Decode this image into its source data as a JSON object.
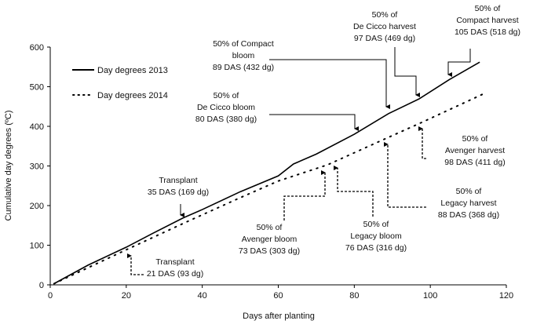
{
  "chart_data": {
    "type": "line",
    "xlabel": "Days after planting",
    "ylabel": "Cumulative day degrees (ºC)",
    "xlim": [
      0,
      120
    ],
    "ylim": [
      0,
      600
    ],
    "xticks": [
      0,
      20,
      40,
      60,
      80,
      100,
      120
    ],
    "yticks": [
      0,
      100,
      200,
      300,
      400,
      500,
      600
    ],
    "grid": false,
    "legend_position": "top-left",
    "series": [
      {
        "name": "Day degrees 2013",
        "style": "solid",
        "color": "#000000",
        "x": [
          1,
          10,
          20,
          27,
          35,
          40,
          50,
          60,
          64,
          70,
          80,
          89,
          97,
          105,
          113
        ],
        "y": [
          3,
          50,
          95,
          130,
          169,
          190,
          235,
          275,
          305,
          330,
          380,
          432,
          469,
          518,
          562
        ]
      },
      {
        "name": "Day degrees 2014",
        "style": "dotted",
        "color": "#000000",
        "x": [
          1,
          21,
          35,
          50,
          60,
          73,
          76,
          88,
          98,
          114
        ],
        "y": [
          3,
          93,
          155,
          220,
          262,
          303,
          316,
          368,
          411,
          482
        ]
      }
    ],
    "annotations": [
      {
        "id": "compact-bloom",
        "lines": [
          "50% of Compact",
          "bloom",
          "89 DAS (432 dg)"
        ]
      },
      {
        "id": "decicco-bloom",
        "lines": [
          "50% of",
          "De Cicco bloom",
          "80 DAS (380 dg)"
        ]
      },
      {
        "id": "decicco-harvest",
        "lines": [
          "50% of",
          "De Cicco harvest",
          "97 DAS (469 dg)"
        ]
      },
      {
        "id": "compact-harvest",
        "lines": [
          "50% of",
          "Compact harvest",
          "105 DAS (518 dg)"
        ]
      },
      {
        "id": "avenger-harvest",
        "lines": [
          "50% of",
          "Avenger harvest",
          "98 DAS (411 dg)"
        ]
      },
      {
        "id": "legacy-harvest",
        "lines": [
          "50% of",
          "Legacy harvest",
          "88 DAS (368 dg)"
        ]
      },
      {
        "id": "legacy-bloom",
        "lines": [
          "50% of",
          "Legacy bloom",
          "76 DAS (316 dg)"
        ]
      },
      {
        "id": "avenger-bloom",
        "lines": [
          "50% of",
          "Avenger bloom",
          "73 DAS (303 dg)"
        ]
      },
      {
        "id": "transplant-2013",
        "lines": [
          "Transplant",
          "35 DAS (169 dg)"
        ]
      },
      {
        "id": "transplant-2014",
        "lines": [
          "Transplant",
          "21 DAS (93 dg)"
        ]
      }
    ]
  }
}
